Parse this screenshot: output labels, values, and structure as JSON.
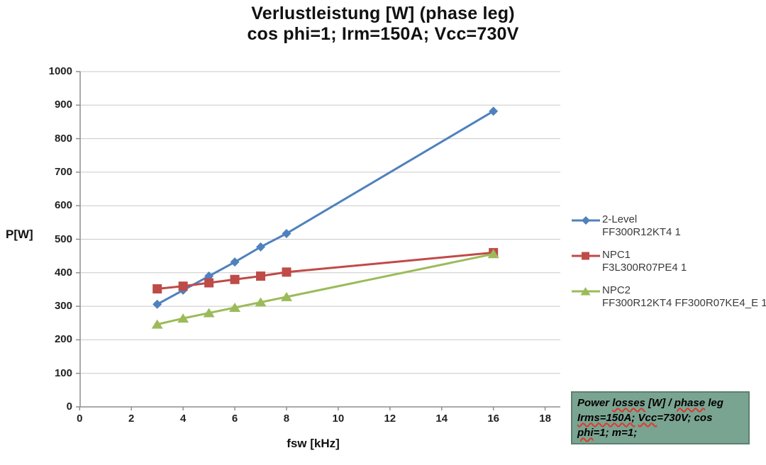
{
  "chart_data": {
    "type": "line",
    "title": "Verlustleistung [W] (phase leg)",
    "subtitle": "cos phi=1; Irm=150A; Vcc=730V",
    "xlabel": "fsw [kHz]",
    "ylabel": "P[W]",
    "x": [
      3,
      4,
      5,
      6,
      7,
      8,
      16
    ],
    "series": [
      {
        "name": "2-Level",
        "part": "FF300R12KT4 1",
        "color": "#4F81BD",
        "marker": "diamond",
        "values": [
          306,
          348,
          390,
          432,
          477,
          517,
          882
        ]
      },
      {
        "name": "NPC1",
        "part": "F3L300R07PE4 1",
        "color": "#BE4B48",
        "marker": "square",
        "values": [
          352,
          360,
          370,
          380,
          390,
          402,
          460
        ]
      },
      {
        "name": "NPC2",
        "part": "FF300R12KT4 FF300R07KE4_E 1",
        "color": "#9BBB59",
        "marker": "triangle",
        "values": [
          246,
          264,
          280,
          296,
          312,
          328,
          456
        ]
      }
    ],
    "xlim": [
      0,
      18
    ],
    "ylim": [
      0,
      1000
    ],
    "xticks": [
      0,
      2,
      4,
      6,
      8,
      10,
      12,
      14,
      16,
      18
    ],
    "yticks": [
      0,
      100,
      200,
      300,
      400,
      500,
      600,
      700,
      800,
      900,
      1000
    ],
    "grid": true,
    "legend_position": "right"
  },
  "callout": {
    "l1": {
      "s0": "Power ",
      "s1": "losses",
      "s2": " [W] / ",
      "s3": "phase",
      "s4": " leg"
    },
    "l2": {
      "s0": "Irms=150A;",
      "s1": " ",
      "s2": "Vcc",
      "s3": "=730V; cos"
    },
    "l3": {
      "s0": "phi",
      "s1": "=1; m=1;"
    }
  }
}
